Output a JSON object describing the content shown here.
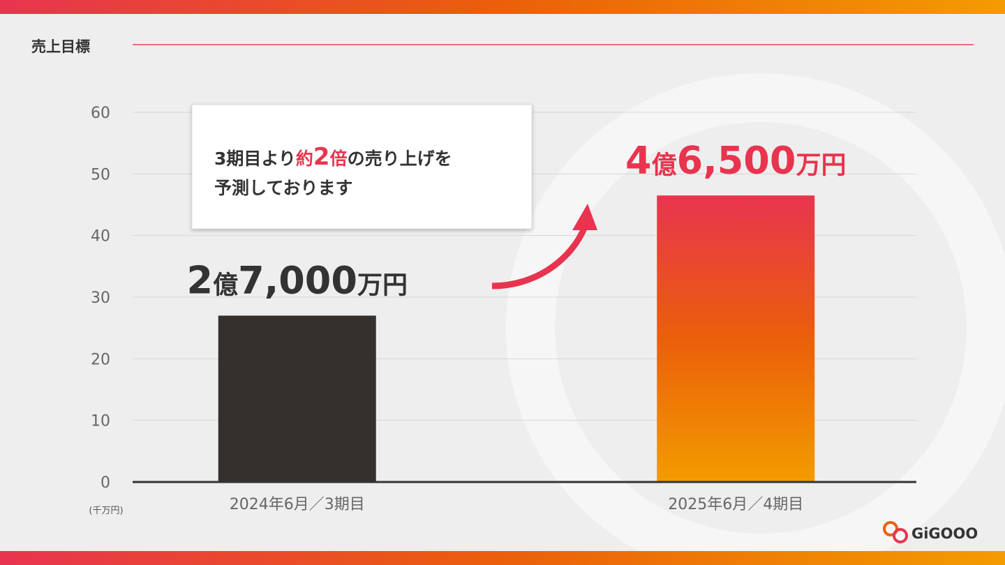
{
  "header": {
    "title": "売上目標"
  },
  "chart_data": {
    "type": "bar",
    "categories": [
      "2024年6月／3期目",
      "2025年6月／4期目"
    ],
    "values": [
      27,
      46.5
    ],
    "value_labels": [
      "2億7,000万円",
      "4億6,500万円"
    ],
    "value_label_colors": [
      "#333333",
      "#e8344f"
    ],
    "colors": [
      [
        "#35302d"
      ],
      [
        "#e8344f",
        "#eb5f0a",
        "#f39c00"
      ]
    ],
    "ylim": [
      0,
      60
    ],
    "yticks": [
      0,
      10,
      20,
      30,
      40,
      50,
      60
    ],
    "grid": true,
    "y_unit": "(千万円)"
  },
  "callout": {
    "lines": [
      [
        {
          "text": "3期目より"
        },
        {
          "text": "約",
          "color": "#e8344f"
        },
        {
          "text": "2",
          "color": "#e8344f"
        },
        {
          "text": "倍",
          "color": "#e8344f"
        },
        {
          "text": "の売り上げを"
        }
      ],
      [
        {
          "text": "予測しております"
        }
      ]
    ]
  },
  "logo": {
    "text": "GiGOOO"
  }
}
